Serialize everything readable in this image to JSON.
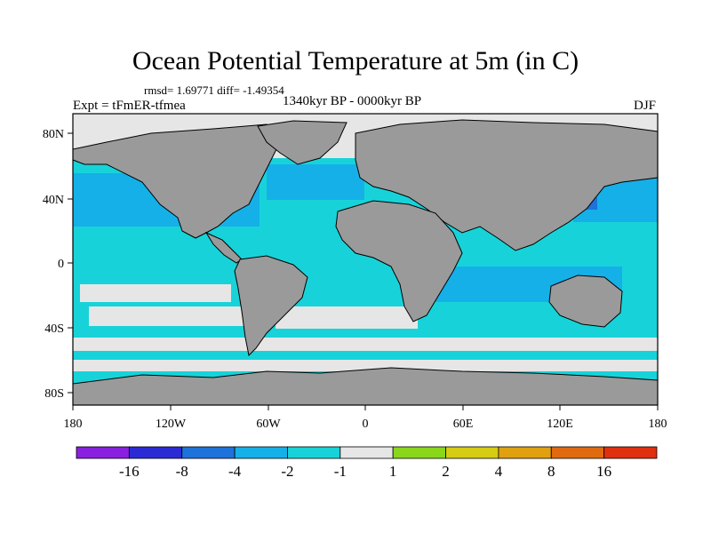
{
  "title": "Ocean Potential Temperature at 5m (in C)",
  "stats_text": "rmsd= 1.69771 diff= -1.49354",
  "period": "1340kyr BP - 0000kyr BP",
  "experiment": "Expt = tFmER-tfmea",
  "season": "DJF",
  "map": {
    "lat_ticks": [
      "80N",
      "40N",
      "0",
      "40S",
      "80S"
    ],
    "lon_ticks": [
      "180",
      "120W",
      "60W",
      "0",
      "60E",
      "120E",
      "180"
    ],
    "colors": {
      "land": "#9a9a9a",
      "near_zero": "#e6e6e6",
      "cyan": "#17d3d9",
      "light_blue": "#15b0e8",
      "blue": "#1d72db",
      "coast": "#000000"
    }
  },
  "colorbar": {
    "labels": [
      "-16",
      "-8",
      "-4",
      "-2",
      "-1",
      "1",
      "2",
      "4",
      "8",
      "16"
    ],
    "colors": [
      "#8a1fe0",
      "#2b2bd6",
      "#1d72db",
      "#15b0e8",
      "#17d3d9",
      "#e6e6e6",
      "#8ad61a",
      "#d6cc12",
      "#e0a010",
      "#e06a10",
      "#e03010"
    ]
  }
}
